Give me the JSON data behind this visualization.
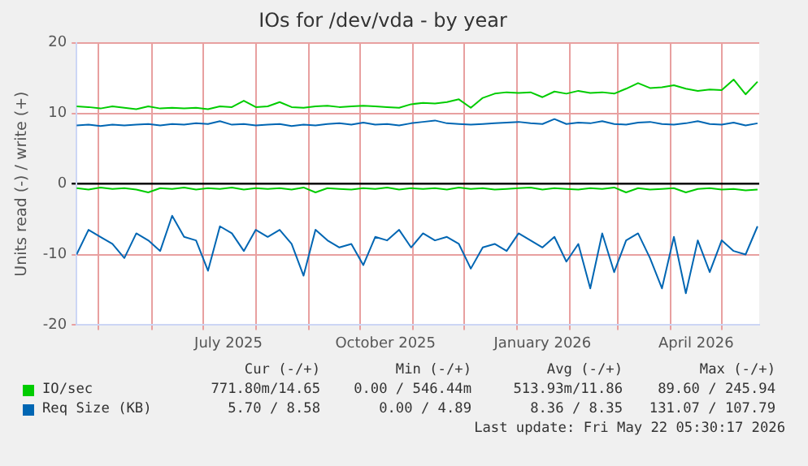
{
  "chart_data": {
    "type": "line",
    "title": "IOs for /dev/vda - by year",
    "ylabel": "Units read (-) / write (+)",
    "x": [
      "2025-04-18",
      "2025-04-25",
      "2025-05-02",
      "2025-05-09",
      "2025-05-16",
      "2025-05-23",
      "2025-05-30",
      "2025-06-06",
      "2025-06-13",
      "2025-06-20",
      "2025-06-27",
      "2025-07-04",
      "2025-07-11",
      "2025-07-18",
      "2025-07-25",
      "2025-08-01",
      "2025-08-08",
      "2025-08-15",
      "2025-08-22",
      "2025-08-29",
      "2025-09-05",
      "2025-09-12",
      "2025-09-19",
      "2025-09-26",
      "2025-10-03",
      "2025-10-10",
      "2025-10-17",
      "2025-10-24",
      "2025-10-31",
      "2025-11-07",
      "2025-11-14",
      "2025-11-21",
      "2025-11-28",
      "2025-12-05",
      "2025-12-12",
      "2025-12-19",
      "2025-12-26",
      "2026-01-02",
      "2026-01-09",
      "2026-01-16",
      "2026-01-23",
      "2026-01-30",
      "2026-02-06",
      "2026-02-13",
      "2026-02-20",
      "2026-02-27",
      "2026-03-06",
      "2026-03-13",
      "2026-03-20",
      "2026-03-27",
      "2026-04-03",
      "2026-04-10",
      "2026-04-17",
      "2026-04-24",
      "2026-05-01",
      "2026-05-08",
      "2026-05-15",
      "2026-05-22"
    ],
    "series": [
      {
        "name": "IO/sec",
        "color": "#00cc00",
        "values": [
          11.0,
          10.9,
          10.7,
          11.0,
          10.8,
          10.6,
          11.0,
          10.7,
          10.8,
          10.7,
          10.8,
          10.6,
          11.0,
          10.9,
          11.8,
          10.9,
          11.0,
          11.6,
          10.9,
          10.8,
          11.0,
          11.1,
          10.9,
          11.0,
          11.1,
          11.0,
          10.9,
          10.8,
          11.3,
          11.5,
          11.4,
          11.6,
          12.0,
          10.8,
          12.2,
          12.8,
          13.0,
          12.9,
          13.0,
          12.3,
          13.1,
          12.8,
          13.2,
          12.9,
          13.0,
          12.8,
          13.5,
          14.3,
          13.6,
          13.7,
          14.0,
          13.5,
          13.2,
          13.4,
          13.3,
          14.8,
          12.7,
          14.5
        ]
      },
      {
        "name": "Req Size (KB)",
        "color": "#0066b3",
        "values": [
          8.3,
          8.4,
          8.2,
          8.4,
          8.3,
          8.4,
          8.5,
          8.3,
          8.5,
          8.4,
          8.6,
          8.5,
          8.9,
          8.4,
          8.5,
          8.3,
          8.4,
          8.5,
          8.2,
          8.4,
          8.3,
          8.5,
          8.6,
          8.4,
          8.7,
          8.4,
          8.5,
          8.3,
          8.6,
          8.8,
          9.0,
          8.6,
          8.5,
          8.4,
          8.5,
          8.6,
          8.7,
          8.8,
          8.6,
          8.5,
          9.2,
          8.5,
          8.7,
          8.6,
          8.9,
          8.5,
          8.4,
          8.7,
          8.8,
          8.5,
          8.4,
          8.6,
          8.9,
          8.5,
          8.4,
          8.7,
          8.3,
          8.6
        ]
      },
      {
        "color": "#00cc00",
        "values": [
          -0.6,
          -0.8,
          -0.5,
          -0.7,
          -0.6,
          -0.8,
          -1.2,
          -0.6,
          -0.7,
          -0.5,
          -0.8,
          -0.6,
          -0.7,
          -0.5,
          -0.8,
          -0.6,
          -0.7,
          -0.6,
          -0.8,
          -0.5,
          -1.2,
          -0.6,
          -0.7,
          -0.8,
          -0.6,
          -0.7,
          -0.5,
          -0.8,
          -0.6,
          -0.7,
          -0.6,
          -0.8,
          -0.5,
          -0.7,
          -0.6,
          -0.8,
          -0.7,
          -0.6,
          -0.5,
          -0.8,
          -0.6,
          -0.7,
          -0.8,
          -0.6,
          -0.7,
          -0.5,
          -1.2,
          -0.6,
          -0.8,
          -0.7,
          -0.6,
          -1.2,
          -0.7,
          -0.6,
          -0.8,
          -0.7,
          -0.9,
          -0.8
        ]
      },
      {
        "color": "#0066b3",
        "values": [
          -10.0,
          -6.5,
          -7.5,
          -8.5,
          -10.5,
          -7.0,
          -8.0,
          -9.5,
          -4.5,
          -7.5,
          -8.0,
          -12.3,
          -6.0,
          -7.0,
          -9.5,
          -6.5,
          -7.5,
          -6.5,
          -8.5,
          -13.0,
          -6.5,
          -8.0,
          -9.0,
          -8.5,
          -11.5,
          -7.5,
          -8.0,
          -6.5,
          -9.0,
          -7.0,
          -8.0,
          -7.5,
          -8.5,
          -12.0,
          -9.0,
          -8.5,
          -9.5,
          -7.0,
          -8.0,
          -9.0,
          -7.5,
          -11.0,
          -8.5,
          -14.8,
          -7.0,
          -12.5,
          -8.0,
          -7.0,
          -10.5,
          -14.8,
          -7.5,
          -15.5,
          -8.0,
          -12.5,
          -8.0,
          -9.5,
          -10.0,
          -6.0
        ]
      }
    ],
    "xlim": [
      "2025-04-18",
      "2026-05-23"
    ],
    "xticks": [
      {
        "value": "2025-05-01",
        "label": null
      },
      {
        "value": "2025-06-01",
        "label": null
      },
      {
        "value": "2025-07-01",
        "label": null
      },
      {
        "value": "2025-07-16",
        "label": "July 2025"
      },
      {
        "value": "2025-08-01",
        "label": null
      },
      {
        "value": "2025-09-01",
        "label": null
      },
      {
        "value": "2025-10-01",
        "label": null
      },
      {
        "value": "2025-10-16",
        "label": "October 2025"
      },
      {
        "value": "2025-11-01",
        "label": null
      },
      {
        "value": "2025-12-01",
        "label": null
      },
      {
        "value": "2026-01-01",
        "label": null
      },
      {
        "value": "2026-01-16",
        "label": "January 2026"
      },
      {
        "value": "2026-02-01",
        "label": null
      },
      {
        "value": "2026-03-01",
        "label": null
      },
      {
        "value": "2026-04-01",
        "label": null
      },
      {
        "value": "2026-04-16",
        "label": "April 2026"
      },
      {
        "value": "2026-05-01",
        "label": null
      }
    ],
    "ylim": [
      -20,
      20
    ],
    "yticks": [
      -20,
      -10,
      0,
      10,
      20
    ],
    "grid": true,
    "legend": "bottom",
    "marker": "none",
    "line_style": "solid",
    "annotations": [
      "Cur (-/+)",
      "Min (-/+)",
      "Avg (-/+)",
      "Max (-/+)",
      "771.80m/14.65",
      "0.00 / 546.44m",
      "513.93m/11.86",
      "89.60 / 245.94",
      "5.70 / 8.58",
      "0.00 / 4.89",
      "8.36 / 8.35",
      "131.07 / 107.79",
      "Last update: Fri May 22 05:30:17 2026"
    ]
  }
}
